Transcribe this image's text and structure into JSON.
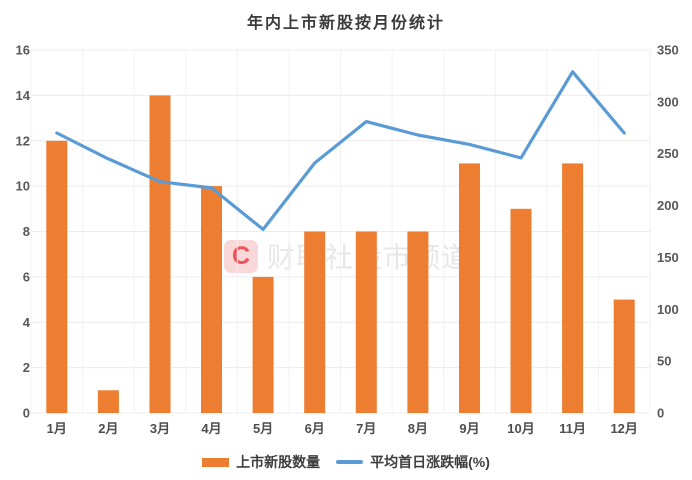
{
  "title": "年内上市新股按月份统计",
  "watermark": {
    "logo_text": "C",
    "text": "财联社股市频道"
  },
  "legend": {
    "bar_label": "上市新股数量",
    "line_label": "平均首日涨跌幅(%)"
  },
  "colors": {
    "bar": "#ED7D31",
    "line": "#5B9BD5",
    "grid": "#ECECEC",
    "grid_vertical": "#F2F2F2",
    "title_text": "#3B3B3B",
    "tick_text": "#595959",
    "x_label_text": "#4D4D4D",
    "legend_text": "#3F3F3F",
    "watermark_logo_bg": "#F9D8DA",
    "watermark_logo_text": "#EF5258",
    "watermark_text": "#E7E7E7",
    "background": "#FFFFFF"
  },
  "chart_data": {
    "type": "bar",
    "title": "年内上市新股按月份统计",
    "categories": [
      "1月",
      "2月",
      "3月",
      "4月",
      "5月",
      "6月",
      "7月",
      "8月",
      "9月",
      "10月",
      "11月",
      "12月"
    ],
    "series": [
      {
        "name": "上市新股数量",
        "type": "bar",
        "axis": "left",
        "color": "#ED7D31",
        "values": [
          12,
          1,
          14,
          10,
          6,
          8,
          8,
          8,
          11,
          9,
          11,
          5
        ]
      },
      {
        "name": "平均首日涨跌幅(%)",
        "type": "line",
        "axis": "right",
        "color": "#5B9BD5",
        "values": [
          270,
          245,
          223,
          217,
          177,
          241,
          281,
          268,
          259,
          246,
          329,
          270
        ]
      }
    ],
    "left_axis": {
      "min": 0,
      "max": 16,
      "step": 2,
      "ticks": [
        0,
        2,
        4,
        6,
        8,
        10,
        12,
        14,
        16
      ]
    },
    "right_axis": {
      "min": 0,
      "max": 350,
      "step": 50,
      "ticks": [
        0,
        50,
        100,
        150,
        200,
        250,
        300,
        350
      ]
    },
    "grid": true,
    "legend_position": "bottom",
    "xlabel": "",
    "ylabel": ""
  }
}
